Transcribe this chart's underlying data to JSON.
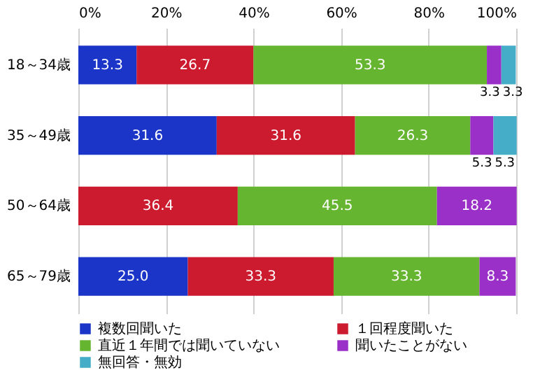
{
  "chart_data": {
    "type": "bar",
    "orientation": "horizontal",
    "stacked": true,
    "categories": [
      "18～34歳",
      "35～49歳",
      "50～64歳",
      "65～79歳"
    ],
    "series": [
      {
        "name": "複数回聞いた",
        "color": "#1a35c8",
        "values": [
          13.3,
          31.6,
          null,
          25.0
        ],
        "value_labels": [
          "13.3",
          "31.6",
          null,
          "25.0"
        ]
      },
      {
        "name": "１回程度聞いた",
        "color": "#cc1a2e",
        "values": [
          26.7,
          31.6,
          36.4,
          33.3
        ],
        "value_labels": [
          "26.7",
          "31.6",
          "36.4",
          "33.3"
        ]
      },
      {
        "name": "直近１年間では聞いていない",
        "color": "#66b530",
        "values": [
          53.3,
          26.3,
          45.5,
          33.3
        ],
        "value_labels": [
          "53.3",
          "26.3",
          "45.5",
          "33.3"
        ]
      },
      {
        "name": "聞いたことがない",
        "color": "#9b30c8",
        "values": [
          3.3,
          5.3,
          18.2,
          8.3
        ],
        "value_labels": [
          "3.3",
          "5.3",
          "18.2",
          "8.3"
        ]
      },
      {
        "name": "無回答・無効",
        "color": "#45adc8",
        "values": [
          3.3,
          5.3,
          null,
          null
        ],
        "value_labels": [
          "3.3",
          "5.3",
          null,
          null
        ]
      }
    ],
    "xlim": [
      0,
      100
    ],
    "xticks": [
      {
        "value": 0,
        "label": "0%"
      },
      {
        "value": 20,
        "label": "20%"
      },
      {
        "value": 40,
        "label": "40%"
      },
      {
        "value": 60,
        "label": "60%"
      },
      {
        "value": 80,
        "label": "80%"
      },
      {
        "value": 100,
        "label": "100%"
      }
    ],
    "grid": "x",
    "legend": "bottom"
  }
}
